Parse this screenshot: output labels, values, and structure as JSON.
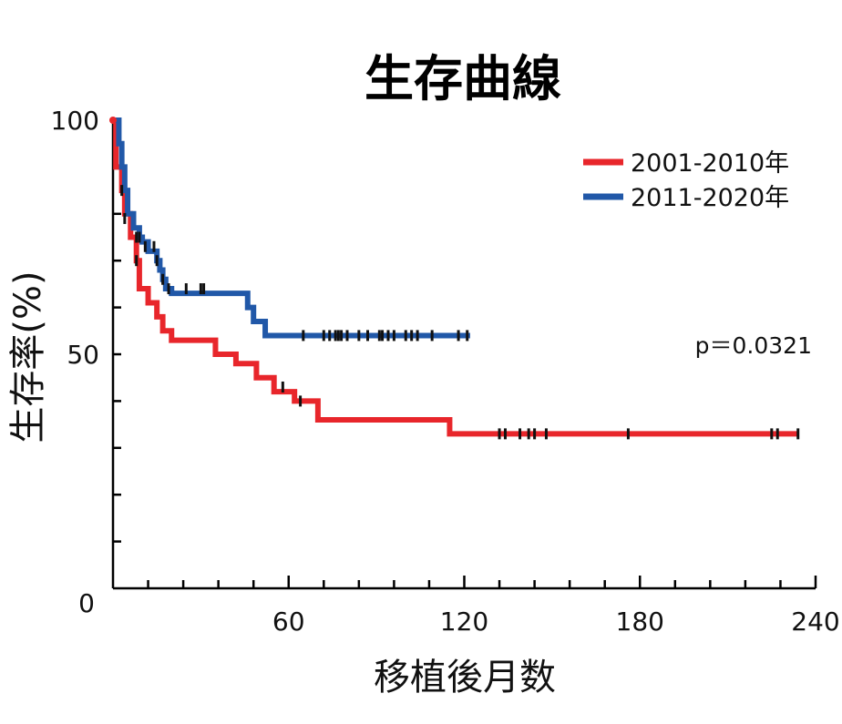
{
  "chart_data": {
    "type": "line",
    "title": "生存曲線",
    "xlabel": "移植後月数",
    "ylabel": "生存率(%)",
    "xlim": [
      0,
      240
    ],
    "ylim": [
      0,
      100
    ],
    "x_ticks": [
      0,
      60,
      120,
      180,
      240
    ],
    "x_tick_labels": [
      "60",
      "120",
      "180",
      "240"
    ],
    "y_tick_labels": [
      "0",
      "50",
      "100"
    ],
    "y_tick_values": [
      0,
      50,
      100
    ],
    "legend_position": "top-right",
    "annotation": "p＝0.0321",
    "series": [
      {
        "name": "2001-2010年",
        "color": "#e8262b",
        "steps": [
          [
            0,
            100
          ],
          [
            1,
            90
          ],
          [
            3,
            85
          ],
          [
            4,
            80
          ],
          [
            6,
            75
          ],
          [
            8,
            70
          ],
          [
            9,
            64
          ],
          [
            12,
            61
          ],
          [
            15,
            58
          ],
          [
            17,
            55
          ],
          [
            20,
            53
          ],
          [
            35,
            50
          ],
          [
            42,
            48
          ],
          [
            49,
            45
          ],
          [
            55,
            42
          ],
          [
            62,
            40
          ],
          [
            70,
            36
          ],
          [
            114,
            36
          ],
          [
            115,
            33
          ],
          [
            234,
            33
          ]
        ],
        "censors": [
          [
            3,
            85
          ],
          [
            8,
            70
          ],
          [
            58,
            43
          ],
          [
            64,
            40
          ],
          [
            132,
            33
          ],
          [
            134,
            33
          ],
          [
            139,
            33
          ],
          [
            142,
            33
          ],
          [
            144,
            33
          ],
          [
            148,
            33
          ],
          [
            176,
            33
          ],
          [
            225,
            33
          ],
          [
            227,
            33
          ],
          [
            234,
            33
          ]
        ]
      },
      {
        "name": "2011-2020年",
        "color": "#2158a8",
        "steps": [
          [
            0,
            100
          ],
          [
            2,
            95
          ],
          [
            3,
            90
          ],
          [
            4,
            85
          ],
          [
            5,
            80
          ],
          [
            7,
            77
          ],
          [
            9,
            75
          ],
          [
            10,
            74
          ],
          [
            12,
            72
          ],
          [
            15,
            70
          ],
          [
            16,
            68
          ],
          [
            17,
            66
          ],
          [
            18,
            64
          ],
          [
            20,
            63
          ],
          [
            43,
            63
          ],
          [
            46,
            60
          ],
          [
            48,
            57
          ],
          [
            52,
            54
          ],
          [
            122,
            54
          ]
        ],
        "censors": [
          [
            4,
            79
          ],
          [
            8,
            75
          ],
          [
            9,
            75
          ],
          [
            11,
            73
          ],
          [
            14,
            73
          ],
          [
            15,
            70
          ],
          [
            17,
            66
          ],
          [
            19,
            64
          ],
          [
            25,
            64
          ],
          [
            30,
            64
          ],
          [
            31,
            64
          ],
          [
            65,
            54
          ],
          [
            72,
            54
          ],
          [
            74,
            54
          ],
          [
            76,
            54
          ],
          [
            77,
            54
          ],
          [
            78,
            54
          ],
          [
            80,
            54
          ],
          [
            84,
            54
          ],
          [
            87,
            54
          ],
          [
            91,
            54
          ],
          [
            92,
            54
          ],
          [
            94,
            54
          ],
          [
            96,
            54
          ],
          [
            100,
            54
          ],
          [
            102,
            54
          ],
          [
            104,
            54
          ],
          [
            109,
            54
          ],
          [
            118,
            54
          ],
          [
            121,
            54
          ]
        ]
      }
    ]
  }
}
